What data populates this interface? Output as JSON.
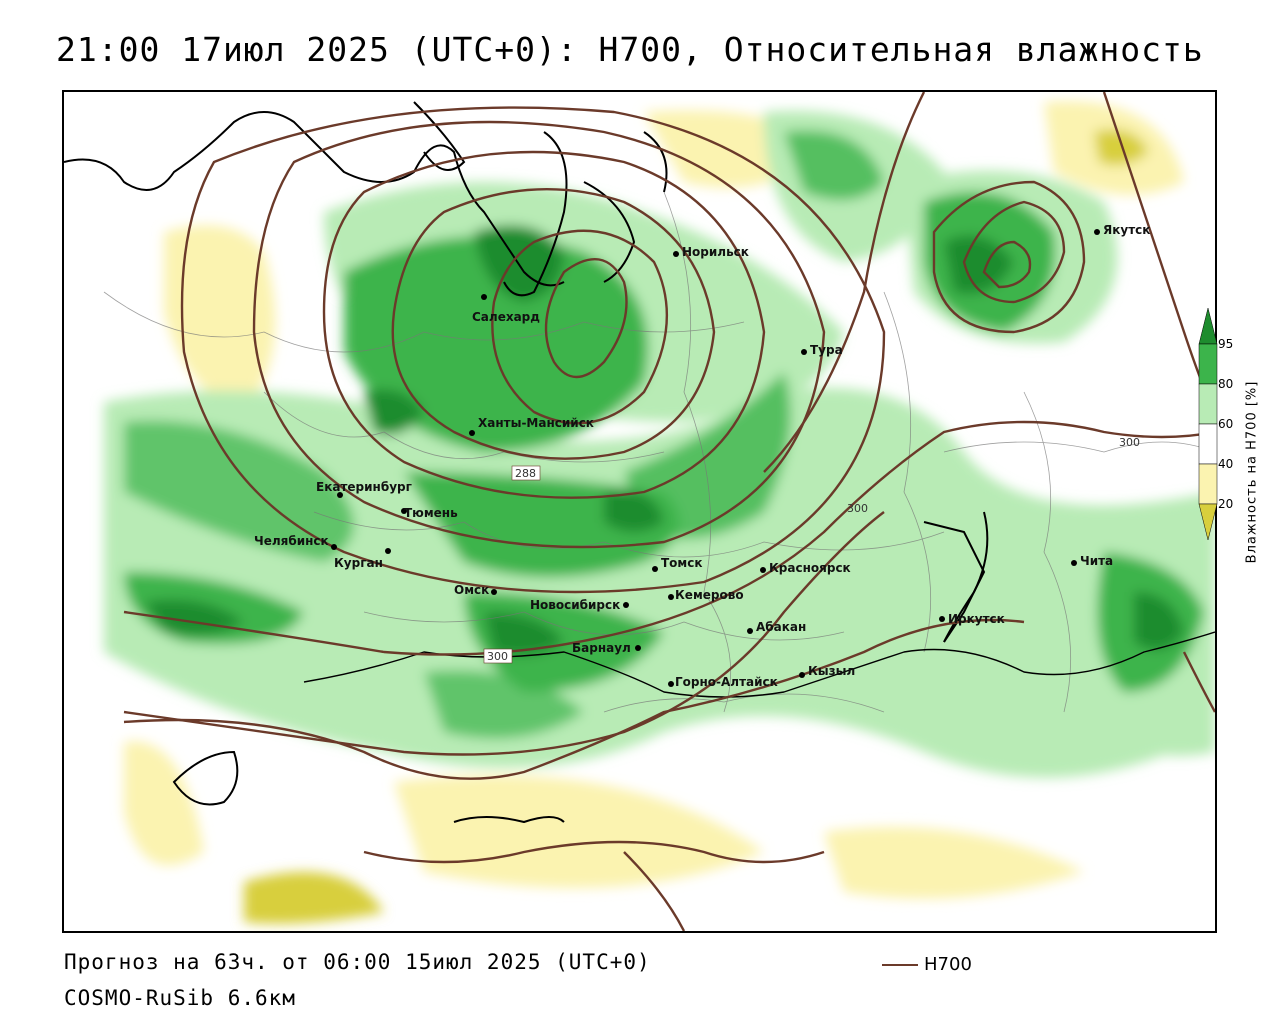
{
  "title": "21:00 17июл 2025 (UTC+0): H700, Относительная влажность",
  "forecast_info": "Прогноз на 63ч. от 06:00 15июл 2025 (UTC+0)",
  "model": "COSMO-RuSib 6.6км",
  "contour_legend": "H700",
  "legend": {
    "title": "Влажность на H700 [%]",
    "ticks": [
      "95",
      "80",
      "60",
      "40",
      "20"
    ],
    "colors": {
      "very_high": "#1e8c2e",
      "high": "#3cb44b",
      "medium": "#b8ebb5",
      "neutral": "#ffffff",
      "dry": "#fbf3b0",
      "very_dry": "#d8cf3c"
    }
  },
  "contour_labels": [
    "288",
    "300",
    "300",
    "300"
  ],
  "cities": [
    {
      "name": "Норильск"
    },
    {
      "name": "Якутск"
    },
    {
      "name": "Салехард"
    },
    {
      "name": "Тура"
    },
    {
      "name": "Ханты-Мансийск"
    },
    {
      "name": "Екатеринбург"
    },
    {
      "name": "Тюмень"
    },
    {
      "name": "Челябинск"
    },
    {
      "name": "Курган"
    },
    {
      "name": "Омск"
    },
    {
      "name": "Новосибирск"
    },
    {
      "name": "Томск"
    },
    {
      "name": "Кемерово"
    },
    {
      "name": "Красноярск"
    },
    {
      "name": "Барнаул"
    },
    {
      "name": "Абакан"
    },
    {
      "name": "Горно-Алтайск"
    },
    {
      "name": "Кызыл"
    },
    {
      "name": "Иркутск"
    },
    {
      "name": "Чита"
    }
  ]
}
